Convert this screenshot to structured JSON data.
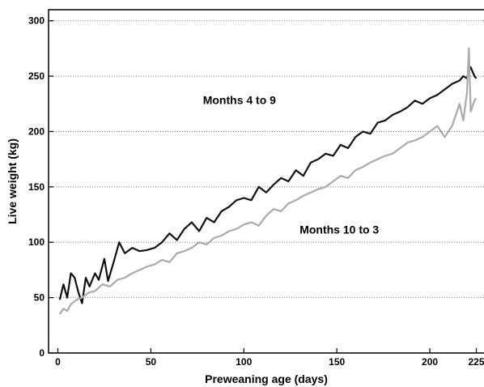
{
  "chart_data": {
    "type": "line",
    "xlabel": "Preweaning age (days)",
    "ylabel": "Live weight (kg)",
    "xlim": [
      -5,
      230
    ],
    "ylim": [
      0,
      310
    ],
    "xticks": [
      0,
      50,
      100,
      150,
      200,
      225
    ],
    "yticks": [
      0,
      50,
      100,
      150,
      200,
      250,
      300
    ],
    "grid": "horizontal-dotted",
    "annotations": [
      {
        "text": "Months 4 to 9",
        "x": 78,
        "y": 225
      },
      {
        "text": "Months 10 to 3",
        "x": 130,
        "y": 108
      }
    ],
    "series": [
      {
        "label_ref": "Months 4 to 9",
        "color": "#111111",
        "x": [
          1,
          3,
          5,
          7,
          9,
          11,
          13,
          15,
          17,
          20,
          22,
          25,
          27,
          30,
          33,
          36,
          40,
          44,
          48,
          52,
          56,
          60,
          64,
          68,
          72,
          76,
          80,
          84,
          88,
          92,
          96,
          100,
          104,
          108,
          112,
          116,
          120,
          124,
          128,
          132,
          136,
          140,
          144,
          148,
          152,
          156,
          160,
          164,
          168,
          172,
          176,
          180,
          184,
          188,
          192,
          196,
          200,
          204,
          208,
          212,
          216,
          218,
          220,
          221,
          222,
          223,
          224,
          225
        ],
        "y": [
          48,
          62,
          50,
          72,
          68,
          55,
          45,
          68,
          60,
          72,
          66,
          85,
          65,
          82,
          100,
          90,
          95,
          92,
          93,
          95,
          100,
          108,
          102,
          112,
          118,
          110,
          122,
          118,
          128,
          132,
          138,
          140,
          138,
          150,
          145,
          152,
          158,
          155,
          165,
          160,
          172,
          175,
          180,
          178,
          188,
          185,
          195,
          200,
          198,
          208,
          210,
          215,
          218,
          222,
          228,
          225,
          230,
          233,
          238,
          243,
          246,
          250,
          248,
          255,
          258,
          254,
          250,
          248
        ]
      },
      {
        "label_ref": "Months 10 to 3",
        "color": "#aaaaaa",
        "x": [
          1,
          3,
          5,
          7,
          10,
          13,
          16,
          20,
          24,
          28,
          32,
          36,
          40,
          44,
          48,
          52,
          56,
          60,
          64,
          68,
          72,
          76,
          80,
          84,
          88,
          92,
          96,
          100,
          104,
          108,
          112,
          116,
          120,
          124,
          128,
          132,
          136,
          140,
          144,
          148,
          152,
          156,
          160,
          164,
          168,
          172,
          176,
          180,
          184,
          188,
          192,
          196,
          200,
          204,
          208,
          212,
          214,
          216,
          218,
          220,
          221,
          222,
          224,
          225
        ],
        "y": [
          35,
          40,
          38,
          44,
          48,
          50,
          54,
          56,
          62,
          60,
          66,
          68,
          72,
          75,
          78,
          80,
          84,
          82,
          90,
          92,
          95,
          100,
          98,
          104,
          106,
          110,
          112,
          116,
          118,
          115,
          124,
          130,
          128,
          135,
          138,
          142,
          145,
          148,
          150,
          155,
          160,
          158,
          165,
          168,
          172,
          175,
          178,
          180,
          185,
          190,
          192,
          195,
          200,
          205,
          195,
          205,
          215,
          225,
          210,
          235,
          275,
          218,
          228,
          230
        ]
      }
    ]
  }
}
